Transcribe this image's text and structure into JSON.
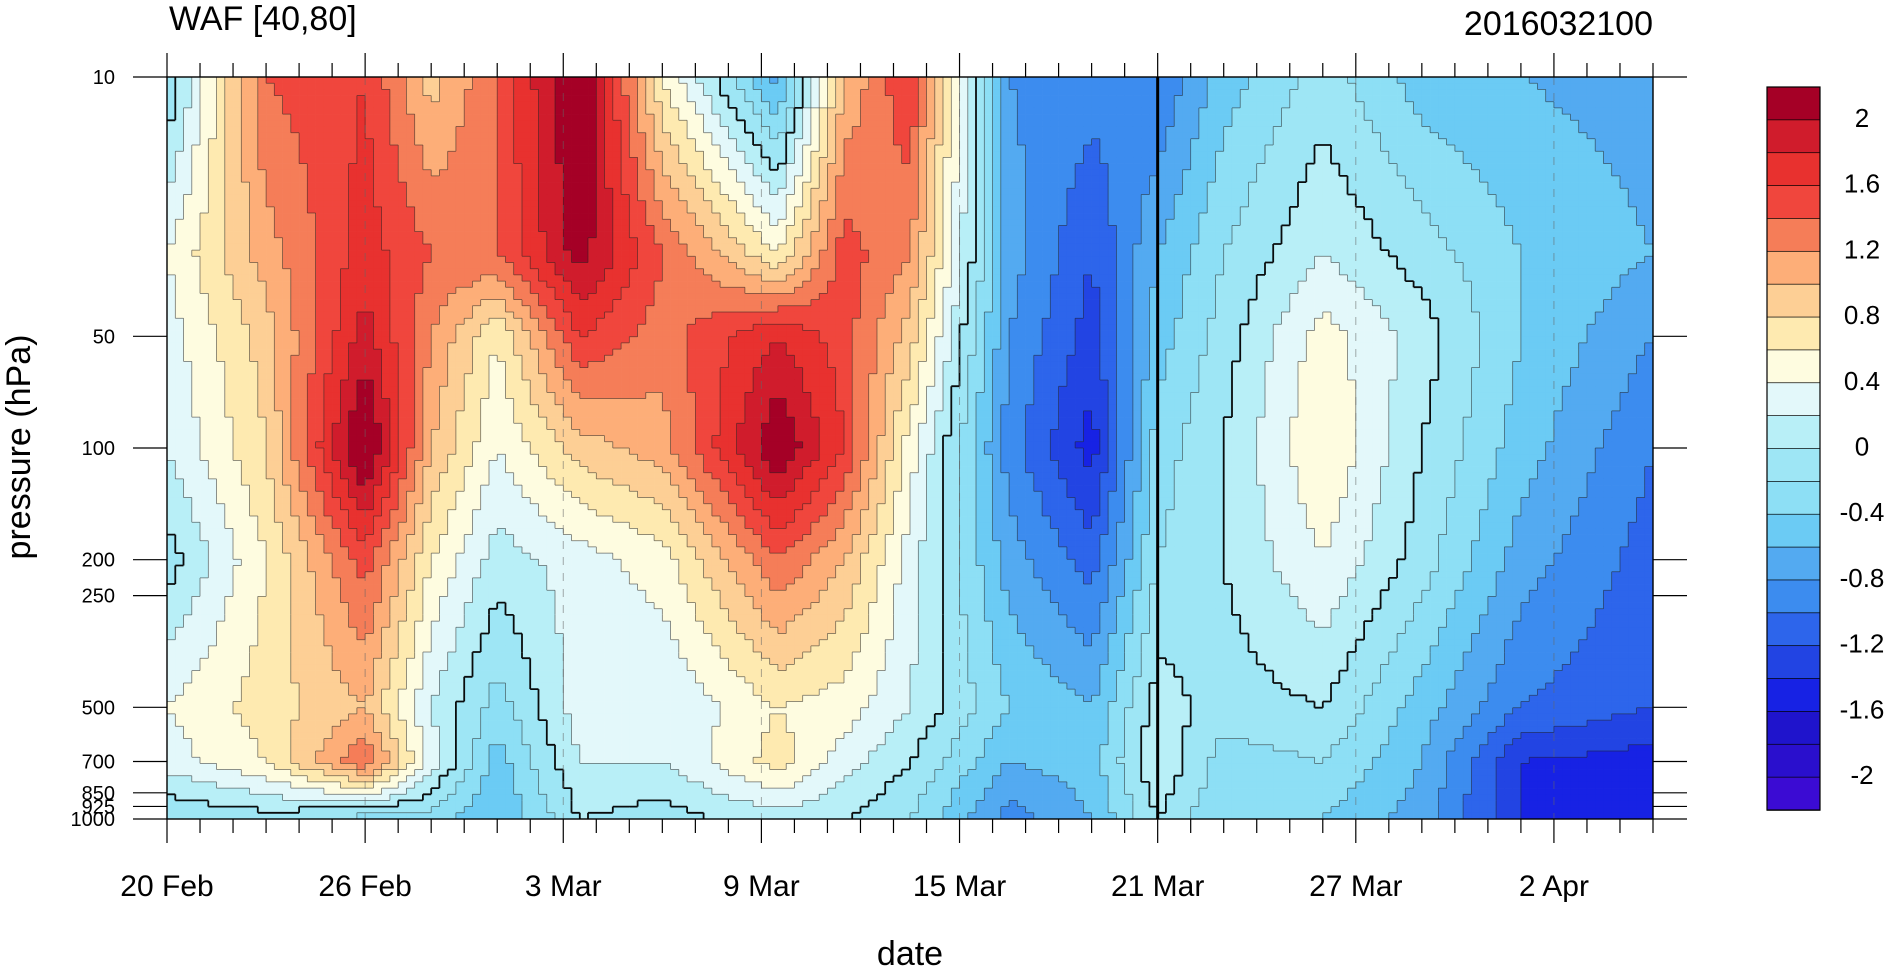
{
  "header": {
    "title": "WAF [40,80]",
    "timestamp": "2016032100"
  },
  "chart_data": {
    "type": "heatmap",
    "subtype": "filled-contour",
    "title": "WAF [40,80]",
    "subtitle_right": "2016032100",
    "xlabel": "date",
    "ylabel": "pressure (hPa)",
    "x_ticks": [
      "20 Feb",
      "26 Feb",
      "3 Mar",
      "9 Mar",
      "15 Mar",
      "21 Mar",
      "27 Mar",
      "2 Apr"
    ],
    "x_days": [
      0,
      6,
      12,
      18,
      24,
      30,
      36,
      42
    ],
    "xlim_days": [
      0,
      45
    ],
    "y_ticks": [
      "10",
      "50",
      "100",
      "200",
      "250",
      "500",
      "700",
      "850",
      "925",
      "1000"
    ],
    "y_values": [
      10,
      50,
      100,
      200,
      250,
      500,
      700,
      850,
      925,
      1000
    ],
    "ylim": [
      1000,
      10
    ],
    "y_scale": "log",
    "marked_date": "21 Mar",
    "marked_day": 30,
    "grid": "dashed vertical lines at labeled dates",
    "colorbar_labels": [
      "2",
      "1.6",
      "1.2",
      "0.8",
      "0.4",
      "0",
      "-0.4",
      "-0.8",
      "-1.2",
      "-1.6",
      "-2"
    ],
    "colorbar_label_levels": [
      2,
      1.6,
      1.2,
      0.8,
      0.4,
      0,
      -0.4,
      -0.8,
      -1.2,
      -1.6,
      -2
    ],
    "levels": [
      2.2,
      2.0,
      1.8,
      1.6,
      1.4,
      1.2,
      1.0,
      0.8,
      0.6,
      0.4,
      0.2,
      0.0,
      -0.2,
      -0.4,
      -0.6,
      -0.8,
      -1.0,
      -1.2,
      -1.4,
      -1.6,
      -1.8,
      -2.0,
      -2.2
    ],
    "colors": [
      "#a50026",
      "#d01c2c",
      "#e8312f",
      "#f0463d",
      "#f57d58",
      "#fdae78",
      "#fdcf95",
      "#feeab0",
      "#fefce0",
      "#e3f8fa",
      "#b8eff7",
      "#9ee6f5",
      "#8ddff5",
      "#6bcbf4",
      "#53aaf1",
      "#3c8cef",
      "#2d65eb",
      "#2244e3",
      "#1722e4",
      "#1f14cc",
      "#2a0fcd",
      "#3b0bd3"
    ],
    "field_days": [
      0,
      3,
      6,
      8,
      10,
      12.5,
      15,
      18.5,
      20.5,
      22.5,
      25.5,
      28,
      30,
      32,
      35,
      38,
      41,
      45
    ],
    "field_pressures": [
      10,
      30,
      50,
      100,
      200,
      500,
      700,
      1000
    ],
    "field_values": [
      [
        -0.2,
        1.4,
        1.6,
        0.9,
        1.4,
        2.3,
        0.6,
        -0.7,
        1.0,
        1.6,
        -0.8,
        -0.9,
        -1.0,
        -0.5,
        -0.1,
        -0.5,
        -0.6,
        -0.7
      ],
      [
        0.4,
        1.1,
        1.7,
        1.4,
        1.4,
        2.1,
        1.4,
        0.6,
        1.5,
        1.2,
        -0.7,
        -1.2,
        -0.6,
        -0.2,
        0.2,
        -0.1,
        -0.4,
        -0.6
      ],
      [
        0.3,
        0.9,
        1.9,
        1.2,
        0.6,
        1.6,
        1.3,
        1.8,
        1.5,
        0.9,
        -0.8,
        -1.3,
        -0.5,
        -0.1,
        0.5,
        0.1,
        -0.4,
        -0.8
      ],
      [
        0.2,
        0.8,
        2.3,
        1.0,
        0.4,
        0.9,
        1.1,
        2.2,
        1.6,
        0.5,
        -0.9,
        -1.5,
        -0.3,
        0.0,
        0.6,
        0.0,
        -0.5,
        -1.0
      ],
      [
        -0.1,
        0.6,
        1.5,
        0.6,
        0.1,
        0.3,
        0.5,
        1.4,
        1.0,
        0.3,
        -0.7,
        -1.1,
        -0.2,
        0.0,
        0.4,
        -0.1,
        -0.7,
        -1.1
      ],
      [
        0.4,
        0.7,
        1.0,
        0.2,
        -0.3,
        0.3,
        0.2,
        0.6,
        0.5,
        0.2,
        -0.4,
        -0.6,
        0.1,
        -0.1,
        0.0,
        -0.5,
        -1.0,
        -1.2
      ],
      [
        0.3,
        0.6,
        1.4,
        0.3,
        -0.5,
        0.2,
        0.2,
        0.7,
        0.3,
        0.0,
        -0.6,
        -0.5,
        0.2,
        -0.3,
        -0.2,
        -0.6,
        -1.4,
        -1.5
      ],
      [
        -0.2,
        -0.1,
        -0.3,
        -0.3,
        -0.6,
        0.0,
        -0.1,
        0.1,
        0.0,
        -0.2,
        -0.9,
        -0.6,
        0.0,
        -0.4,
        -0.4,
        -0.7,
        -1.4,
        -1.6
      ]
    ]
  }
}
